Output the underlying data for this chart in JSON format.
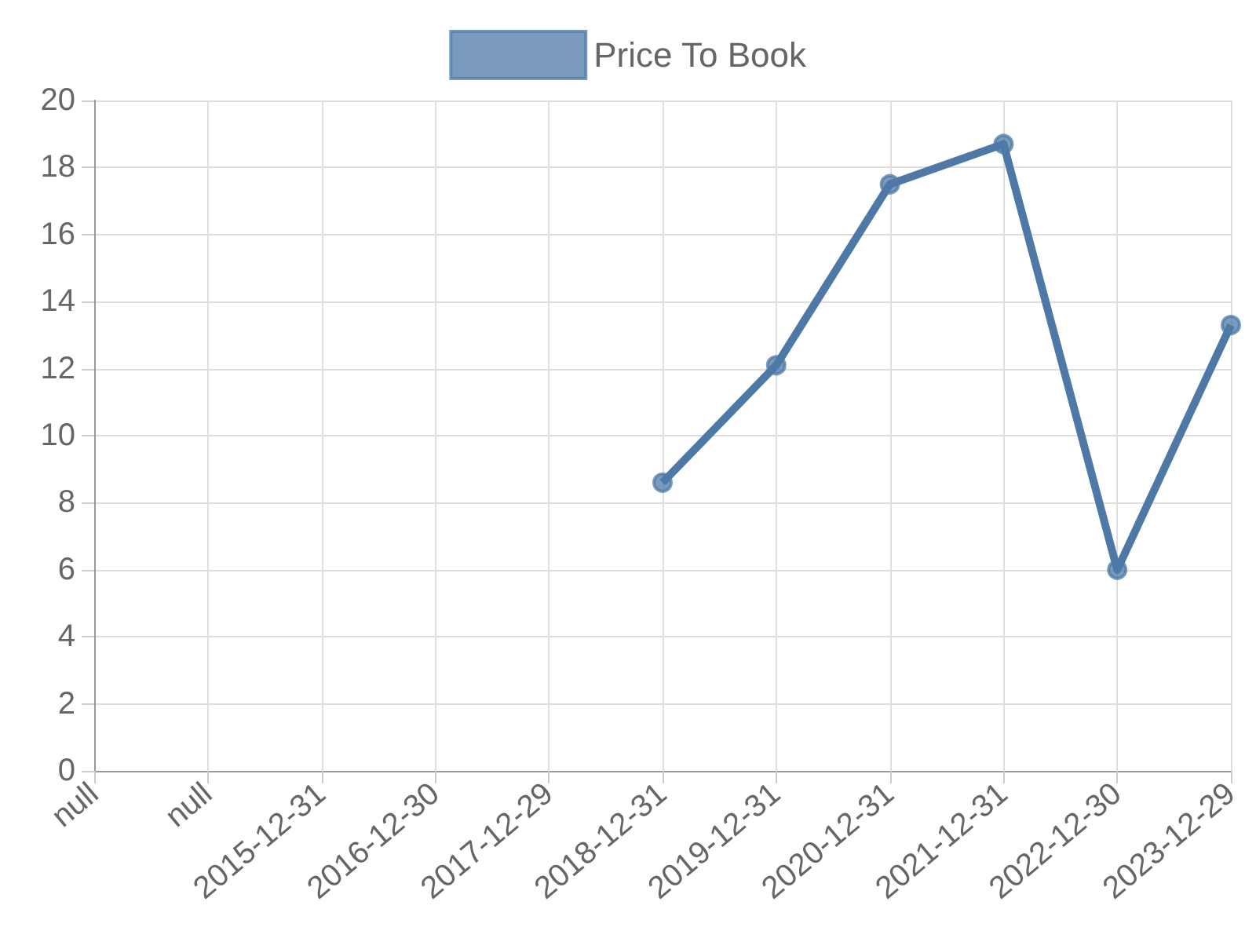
{
  "chart_data": {
    "type": "line",
    "categories": [
      "null",
      "null",
      "2015-12-31",
      "2016-12-30",
      "2017-12-29",
      "2018-12-31",
      "2019-12-31",
      "2020-12-31",
      "2021-12-31",
      "2022-12-30",
      "2023-12-29"
    ],
    "series": [
      {
        "name": "Price To Book",
        "color": "#4e79a7",
        "values": [
          null,
          null,
          null,
          null,
          null,
          8.6,
          12.1,
          17.5,
          18.7,
          6.0,
          13.3
        ]
      }
    ],
    "ylim": [
      0,
      20
    ],
    "yticks": [
      0,
      2,
      4,
      6,
      8,
      10,
      12,
      14,
      16,
      18,
      20
    ],
    "grid": true,
    "legend": "top",
    "marker": "circle",
    "line_style": "solid"
  }
}
